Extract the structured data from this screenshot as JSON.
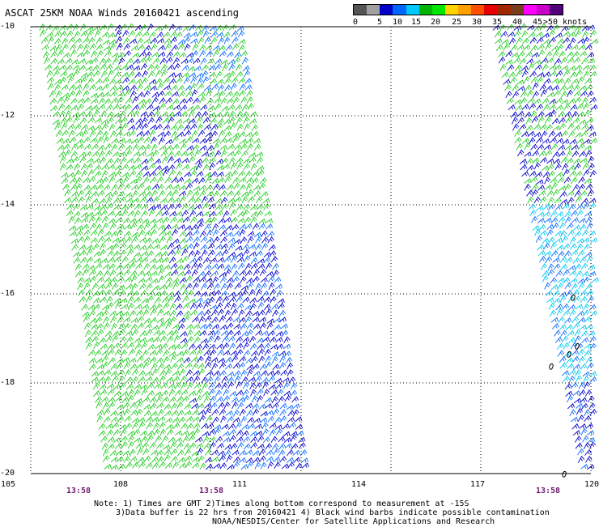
{
  "title": "ASCAT 25KM NOAA Winds 20160421 ascending",
  "scale": {
    "colors": [
      "#555555",
      "#a0a0a0",
      "#0000c8",
      "#0064ff",
      "#00c8ff",
      "#00b400",
      "#00e600",
      "#ffd200",
      "#ffa000",
      "#ff5000",
      "#e60000",
      "#a02800",
      "#783c1e",
      "#ff00ff",
      "#c800c8",
      "#500078"
    ],
    "labels": [
      "0",
      "5",
      "10",
      "15",
      "20",
      "25",
      "30",
      "35",
      "40",
      "45",
      ">50 knots"
    ]
  },
  "axes": {
    "lat_labels": [
      "-10",
      "-12",
      "-14",
      "-16",
      "-18",
      "-20"
    ],
    "lon_labels": [
      "105",
      "108",
      "111",
      "114",
      "117",
      "120"
    ]
  },
  "swath_times": [
    "13:58",
    "13:58",
    "13:58"
  ],
  "notes": [
    "Note: 1) Times are GMT 2)Times along bottom correspond to measurement at -15S",
    "3)Data buffer is 22 hrs from 20160421 4) Black wind barbs indicate possible contamination",
    "NOAA/NESDIS/Center for Satellite Applications and Research"
  ],
  "colors": {
    "green": "#22cc22",
    "blue": "#0000cc",
    "midblue": "#0a6cff",
    "cyan": "#00c8f0"
  }
}
